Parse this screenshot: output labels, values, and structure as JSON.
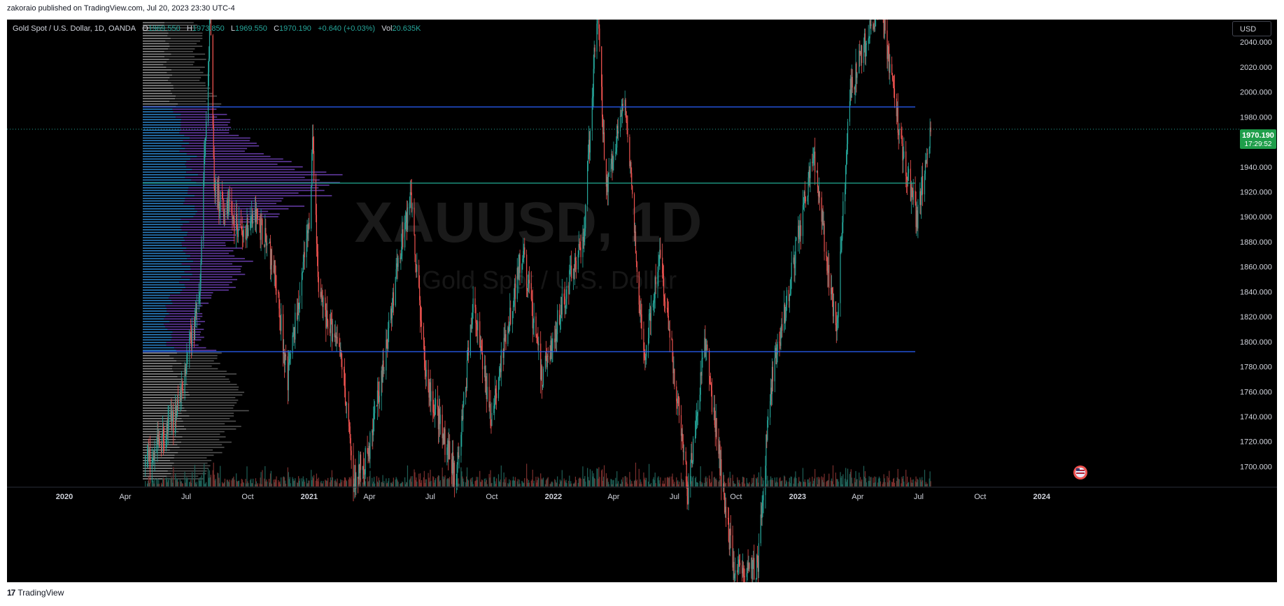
{
  "header": {
    "publisher": "zakoraio published on TradingView.com, Jul 20, 2023 23:30 UTC-4"
  },
  "footer": {
    "brand": "TradingView"
  },
  "legend": {
    "symbol": "Gold Spot / U.S. Dollar, 1D, OANDA",
    "open_label": "O",
    "open": "1969.550",
    "high_label": "H",
    "high": "1973.850",
    "low_label": "L",
    "low": "1969.550",
    "close_label": "C",
    "close": "1970.190",
    "change": "+0.640 (+0.03%)",
    "vol_label": "Vol",
    "vol": "20.635K"
  },
  "currency_button": "USD",
  "watermark": {
    "ticker": "XAUUSD, 1D",
    "name": "Gold Spot / U.S. Dollar"
  },
  "last_price": {
    "value": "1970.190",
    "countdown": "17:29:52"
  },
  "colors": {
    "up": "#26a69a",
    "down": "#ef5350",
    "line_blue": "#2962ff",
    "line_green": "#22ab94",
    "vp_blue": "#2a7fc4",
    "vp_purple": "#6b3fb0",
    "vp_gray": "#8e8e8e",
    "price_tag": "#1e9e4a"
  },
  "chart_data": {
    "type": "candlestick",
    "title": "Gold Spot / U.S. Dollar, 1D, OANDA",
    "xlabel": "",
    "ylabel": "",
    "ylim": [
      1684,
      2058
    ],
    "y_ticks": [
      1700,
      1720,
      1740,
      1760,
      1780,
      1800,
      1820,
      1840,
      1860,
      1880,
      1900,
      1920,
      1940,
      1960,
      1980,
      2000,
      2020,
      2040
    ],
    "x_ticks": [
      "2020",
      "Apr",
      "Jul",
      "Oct",
      "2021",
      "Apr",
      "Jul",
      "Oct",
      "2022",
      "Apr",
      "Jul",
      "Oct",
      "2023",
      "Apr",
      "Jul",
      "Oct",
      "2024"
    ],
    "price_path": [
      {
        "date": "2020-05-01",
        "price": 1700
      },
      {
        "date": "2020-06-15",
        "price": 1740
      },
      {
        "date": "2020-07-20",
        "price": 1830
      },
      {
        "date": "2020-08-06",
        "price": 2065
      },
      {
        "date": "2020-08-12",
        "price": 1920
      },
      {
        "date": "2020-09-20",
        "price": 1890
      },
      {
        "date": "2020-10-15",
        "price": 1900
      },
      {
        "date": "2020-11-09",
        "price": 1860
      },
      {
        "date": "2020-11-30",
        "price": 1770
      },
      {
        "date": "2020-12-31",
        "price": 1890
      },
      {
        "date": "2021-01-06",
        "price": 1955
      },
      {
        "date": "2021-01-15",
        "price": 1840
      },
      {
        "date": "2021-02-20",
        "price": 1780
      },
      {
        "date": "2021-03-08",
        "price": 1690
      },
      {
        "date": "2021-03-31",
        "price": 1710
      },
      {
        "date": "2021-04-15",
        "price": 1760
      },
      {
        "date": "2021-05-20",
        "price": 1880
      },
      {
        "date": "2021-06-01",
        "price": 1915
      },
      {
        "date": "2021-06-25",
        "price": 1770
      },
      {
        "date": "2021-08-09",
        "price": 1690
      },
      {
        "date": "2021-09-03",
        "price": 1830
      },
      {
        "date": "2021-09-30",
        "price": 1740
      },
      {
        "date": "2021-11-16",
        "price": 1875
      },
      {
        "date": "2021-12-15",
        "price": 1770
      },
      {
        "date": "2022-01-25",
        "price": 1850
      },
      {
        "date": "2022-02-15",
        "price": 1880
      },
      {
        "date": "2022-03-08",
        "price": 2070
      },
      {
        "date": "2022-03-20",
        "price": 1920
      },
      {
        "date": "2022-04-18",
        "price": 1995
      },
      {
        "date": "2022-05-16",
        "price": 1785
      },
      {
        "date": "2022-06-10",
        "price": 1870
      },
      {
        "date": "2022-07-21",
        "price": 1680
      },
      {
        "date": "2022-08-15",
        "price": 1800
      },
      {
        "date": "2022-09-28",
        "price": 1615
      },
      {
        "date": "2022-11-03",
        "price": 1620
      },
      {
        "date": "2022-11-20",
        "price": 1760
      },
      {
        "date": "2023-01-25",
        "price": 1950
      },
      {
        "date": "2023-02-28",
        "price": 1805
      },
      {
        "date": "2023-03-20",
        "price": 2000
      },
      {
        "date": "2023-05-04",
        "price": 2075
      },
      {
        "date": "2023-06-05",
        "price": 1960
      },
      {
        "date": "2023-06-29",
        "price": 1895
      },
      {
        "date": "2023-07-20",
        "price": 1975
      }
    ],
    "horizontal_lines": [
      {
        "price": 1988,
        "color": "blue"
      },
      {
        "price": 1927,
        "color": "green"
      },
      {
        "price": 1792,
        "color": "blue"
      }
    ]
  }
}
